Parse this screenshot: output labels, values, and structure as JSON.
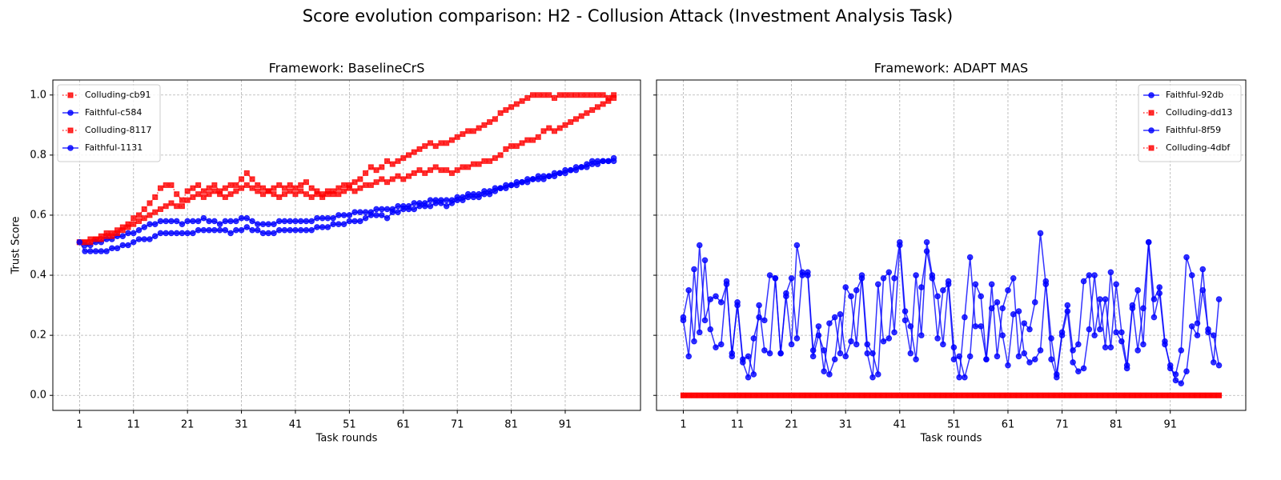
{
  "suptitle": "Score evolution comparison: H2 - Collusion Attack (Investment Analysis Task)",
  "chart_data": [
    {
      "type": "line",
      "title": "Framework: BaselineCrS",
      "xlabel": "Task rounds",
      "ylabel": "Trust Score",
      "x": [
        1,
        2,
        3,
        4,
        5,
        6,
        7,
        8,
        9,
        10,
        11,
        12,
        13,
        14,
        15,
        16,
        17,
        18,
        19,
        20,
        21,
        22,
        23,
        24,
        25,
        26,
        27,
        28,
        29,
        30,
        31,
        32,
        33,
        34,
        35,
        36,
        37,
        38,
        39,
        40,
        41,
        42,
        43,
        44,
        45,
        46,
        47,
        48,
        49,
        50,
        51,
        52,
        53,
        54,
        55,
        56,
        57,
        58,
        59,
        60,
        61,
        62,
        63,
        64,
        65,
        66,
        67,
        68,
        69,
        70,
        71,
        72,
        73,
        74,
        75,
        76,
        77,
        78,
        79,
        80,
        81,
        82,
        83,
        84,
        85,
        86,
        87,
        88,
        89,
        90,
        91,
        92,
        93,
        94,
        95,
        96,
        97,
        98,
        99,
        100
      ],
      "xlim": [
        -3.95,
        104.95
      ],
      "xticks": [
        1,
        11,
        21,
        31,
        41,
        51,
        61,
        71,
        81,
        91
      ],
      "ylim": [
        -0.05,
        1.05
      ],
      "yticks": [
        {
          "value": 0,
          "label": "0.0"
        },
        {
          "value": 0.2,
          "label": "0.2"
        },
        {
          "value": 0.4,
          "label": "0.4"
        },
        {
          "value": 0.6,
          "label": "0.6"
        },
        {
          "value": 0.8,
          "label": "0.8"
        },
        {
          "value": 1,
          "label": "1.0"
        }
      ],
      "grid": true,
      "legend": "upper left",
      "series": [
        {
          "name": "Colluding-cb91",
          "color": "#ff0000",
          "marker": "square",
          "dash": "dotted",
          "values": [
            0.51,
            0.51,
            0.52,
            0.52,
            0.53,
            0.54,
            0.54,
            0.55,
            0.56,
            0.57,
            0.59,
            0.6,
            0.62,
            0.64,
            0.66,
            0.69,
            0.7,
            0.7,
            0.67,
            0.65,
            0.68,
            0.69,
            0.7,
            0.68,
            0.69,
            0.7,
            0.68,
            0.69,
            0.7,
            0.7,
            0.72,
            0.74,
            0.72,
            0.7,
            0.69,
            0.68,
            0.69,
            0.7,
            0.69,
            0.7,
            0.69,
            0.7,
            0.71,
            0.69,
            0.68,
            0.67,
            0.68,
            0.67,
            0.69,
            0.7,
            0.7,
            0.71,
            0.72,
            0.74,
            0.76,
            0.75,
            0.76,
            0.78,
            0.77,
            0.78,
            0.79,
            0.8,
            0.81,
            0.82,
            0.83,
            0.84,
            0.83,
            0.84,
            0.84,
            0.85,
            0.86,
            0.87,
            0.88,
            0.88,
            0.89,
            0.9,
            0.91,
            0.92,
            0.94,
            0.95,
            0.96,
            0.97,
            0.98,
            0.99,
            1.0,
            1.0,
            1.0,
            1.0,
            0.99,
            1.0,
            1.0,
            1.0,
            1.0,
            1.0,
            1.0,
            1.0,
            1.0,
            1.0,
            0.99,
            1.0
          ]
        },
        {
          "name": "Faithful-c584",
          "color": "#0000ff",
          "marker": "circle",
          "dash": "solid",
          "values": [
            0.51,
            0.5,
            0.5,
            0.51,
            0.51,
            0.52,
            0.52,
            0.53,
            0.53,
            0.54,
            0.54,
            0.55,
            0.56,
            0.57,
            0.57,
            0.58,
            0.58,
            0.58,
            0.58,
            0.57,
            0.58,
            0.58,
            0.58,
            0.59,
            0.58,
            0.58,
            0.57,
            0.58,
            0.58,
            0.58,
            0.59,
            0.59,
            0.58,
            0.57,
            0.57,
            0.57,
            0.57,
            0.58,
            0.58,
            0.58,
            0.58,
            0.58,
            0.58,
            0.58,
            0.59,
            0.59,
            0.59,
            0.59,
            0.6,
            0.6,
            0.6,
            0.61,
            0.61,
            0.61,
            0.61,
            0.62,
            0.62,
            0.62,
            0.62,
            0.63,
            0.63,
            0.63,
            0.64,
            0.64,
            0.64,
            0.65,
            0.65,
            0.65,
            0.65,
            0.65,
            0.66,
            0.66,
            0.67,
            0.67,
            0.67,
            0.68,
            0.68,
            0.69,
            0.69,
            0.7,
            0.7,
            0.71,
            0.71,
            0.72,
            0.72,
            0.73,
            0.73,
            0.73,
            0.74,
            0.74,
            0.75,
            0.75,
            0.76,
            0.76,
            0.77,
            0.78,
            0.78,
            0.78,
            0.78,
            0.79
          ]
        },
        {
          "name": "Colluding-8117",
          "color": "#ff0000",
          "marker": "square",
          "dash": "dotted",
          "values": [
            0.51,
            0.51,
            0.51,
            0.52,
            0.52,
            0.53,
            0.53,
            0.54,
            0.55,
            0.56,
            0.57,
            0.58,
            0.59,
            0.6,
            0.61,
            0.62,
            0.63,
            0.64,
            0.63,
            0.63,
            0.65,
            0.66,
            0.67,
            0.66,
            0.67,
            0.68,
            0.67,
            0.66,
            0.67,
            0.68,
            0.69,
            0.7,
            0.69,
            0.68,
            0.67,
            0.68,
            0.67,
            0.66,
            0.67,
            0.68,
            0.67,
            0.68,
            0.67,
            0.66,
            0.67,
            0.66,
            0.67,
            0.68,
            0.67,
            0.68,
            0.69,
            0.68,
            0.69,
            0.7,
            0.7,
            0.71,
            0.72,
            0.71,
            0.72,
            0.73,
            0.72,
            0.73,
            0.74,
            0.75,
            0.74,
            0.75,
            0.76,
            0.75,
            0.75,
            0.74,
            0.75,
            0.76,
            0.76,
            0.77,
            0.77,
            0.78,
            0.78,
            0.79,
            0.8,
            0.82,
            0.83,
            0.83,
            0.84,
            0.85,
            0.85,
            0.86,
            0.88,
            0.89,
            0.88,
            0.89,
            0.9,
            0.91,
            0.92,
            0.93,
            0.94,
            0.95,
            0.96,
            0.97,
            0.98,
            0.99
          ]
        },
        {
          "name": "Faithful-1131",
          "color": "#0000ff",
          "marker": "circle",
          "dash": "solid",
          "values": [
            0.51,
            0.48,
            0.48,
            0.48,
            0.48,
            0.48,
            0.49,
            0.49,
            0.5,
            0.5,
            0.51,
            0.52,
            0.52,
            0.52,
            0.53,
            0.54,
            0.54,
            0.54,
            0.54,
            0.54,
            0.54,
            0.54,
            0.55,
            0.55,
            0.55,
            0.55,
            0.55,
            0.55,
            0.54,
            0.55,
            0.55,
            0.56,
            0.55,
            0.55,
            0.54,
            0.54,
            0.54,
            0.55,
            0.55,
            0.55,
            0.55,
            0.55,
            0.55,
            0.55,
            0.56,
            0.56,
            0.56,
            0.57,
            0.57,
            0.57,
            0.58,
            0.58,
            0.58,
            0.59,
            0.6,
            0.6,
            0.6,
            0.59,
            0.61,
            0.61,
            0.62,
            0.62,
            0.62,
            0.63,
            0.63,
            0.63,
            0.64,
            0.64,
            0.63,
            0.64,
            0.65,
            0.65,
            0.66,
            0.66,
            0.66,
            0.67,
            0.67,
            0.68,
            0.69,
            0.69,
            0.7,
            0.7,
            0.71,
            0.71,
            0.72,
            0.72,
            0.72,
            0.73,
            0.73,
            0.74,
            0.74,
            0.75,
            0.75,
            0.76,
            0.76,
            0.77,
            0.77,
            0.78,
            0.78,
            0.78
          ]
        }
      ]
    },
    {
      "type": "line",
      "title": "Framework: ADAPT MAS",
      "xlabel": "Task rounds",
      "x": [
        1,
        2,
        3,
        4,
        5,
        6,
        7,
        8,
        9,
        10,
        11,
        12,
        13,
        14,
        15,
        16,
        17,
        18,
        19,
        20,
        21,
        22,
        23,
        24,
        25,
        26,
        27,
        28,
        29,
        30,
        31,
        32,
        33,
        34,
        35,
        36,
        37,
        38,
        39,
        40,
        41,
        42,
        43,
        44,
        45,
        46,
        47,
        48,
        49,
        50,
        51,
        52,
        53,
        54,
        55,
        56,
        57,
        58,
        59,
        60,
        61,
        62,
        63,
        64,
        65,
        66,
        67,
        68,
        69,
        70,
        71,
        72,
        73,
        74,
        75,
        76,
        77,
        78,
        79,
        80,
        81,
        82,
        83,
        84,
        85,
        86,
        87,
        88,
        89,
        90,
        91,
        92,
        93,
        94,
        95,
        96,
        97,
        98,
        99,
        100
      ],
      "xlim": [
        -3.95,
        104.95
      ],
      "xticks": [
        1,
        11,
        21,
        31,
        41,
        51,
        61,
        71,
        81,
        91
      ],
      "ylim": [
        -0.05,
        1.05
      ],
      "yticks": [
        0,
        0.2,
        0.4,
        0.6,
        0.8,
        1
      ],
      "grid": true,
      "legend": "upper right",
      "series": [
        {
          "name": "Faithful-92db",
          "color": "#0000ff",
          "marker": "circle",
          "dash": "solid",
          "values": [
            0.26,
            0.35,
            0.18,
            0.5,
            0.25,
            0.32,
            0.33,
            0.31,
            0.37,
            0.14,
            0.3,
            0.11,
            0.06,
            0.19,
            0.26,
            0.25,
            0.4,
            0.39,
            0.14,
            0.33,
            0.17,
            0.5,
            0.4,
            0.41,
            0.15,
            0.23,
            0.08,
            0.24,
            0.26,
            0.14,
            0.36,
            0.33,
            0.17,
            0.4,
            0.17,
            0.14,
            0.07,
            0.39,
            0.41,
            0.21,
            0.5,
            0.25,
            0.14,
            0.4,
            0.2,
            0.51,
            0.4,
            0.33,
            0.17,
            0.38,
            0.16,
            0.06,
            0.26,
            0.46,
            0.23,
            0.23,
            0.12,
            0.37,
            0.13,
            0.29,
            0.35,
            0.39,
            0.13,
            0.24,
            0.22,
            0.31,
            0.54,
            0.37,
            0.19,
            0.07,
            0.21,
            0.3,
            0.15,
            0.17,
            0.38,
            0.4,
            0.2,
            0.32,
            0.16,
            0.41,
            0.21,
            0.18,
            0.09,
            0.29,
            0.35,
            0.17,
            0.51,
            0.32,
            0.36,
            0.18,
            0.09,
            0.07,
            0.15,
            0.46,
            0.4,
            0.24,
            0.42,
            0.21,
            0.2,
            0.1
          ]
        },
        {
          "name": "Colluding-dd13",
          "color": "#ff0000",
          "marker": "square",
          "dash": "dotted",
          "values": [
            0,
            0,
            0,
            0,
            0,
            0,
            0,
            0,
            0,
            0,
            0,
            0,
            0,
            0,
            0,
            0,
            0,
            0,
            0,
            0,
            0,
            0,
            0,
            0,
            0,
            0,
            0,
            0,
            0,
            0,
            0,
            0,
            0,
            0,
            0,
            0,
            0,
            0,
            0,
            0,
            0,
            0,
            0,
            0,
            0,
            0,
            0,
            0,
            0,
            0,
            0,
            0,
            0,
            0,
            0,
            0,
            0,
            0,
            0,
            0,
            0,
            0,
            0,
            0,
            0,
            0,
            0,
            0,
            0,
            0,
            0,
            0,
            0,
            0,
            0,
            0,
            0,
            0,
            0,
            0,
            0,
            0,
            0,
            0,
            0,
            0,
            0,
            0,
            0,
            0,
            0,
            0,
            0,
            0,
            0,
            0,
            0,
            0,
            0,
            0
          ]
        },
        {
          "name": "Faithful-8f59",
          "color": "#0000ff",
          "marker": "circle",
          "dash": "solid",
          "values": [
            0.25,
            0.13,
            0.42,
            0.21,
            0.45,
            0.22,
            0.16,
            0.17,
            0.38,
            0.13,
            0.31,
            0.12,
            0.13,
            0.07,
            0.3,
            0.15,
            0.14,
            0.39,
            0.14,
            0.34,
            0.39,
            0.19,
            0.41,
            0.4,
            0.13,
            0.2,
            0.15,
            0.07,
            0.12,
            0.27,
            0.13,
            0.18,
            0.35,
            0.39,
            0.14,
            0.06,
            0.37,
            0.18,
            0.19,
            0.39,
            0.51,
            0.28,
            0.23,
            0.12,
            0.36,
            0.48,
            0.39,
            0.19,
            0.35,
            0.37,
            0.12,
            0.13,
            0.06,
            0.13,
            0.37,
            0.33,
            0.12,
            0.29,
            0.31,
            0.2,
            0.1,
            0.27,
            0.28,
            0.14,
            0.11,
            0.12,
            0.15,
            0.38,
            0.12,
            0.06,
            0.2,
            0.28,
            0.11,
            0.08,
            0.09,
            0.22,
            0.4,
            0.22,
            0.32,
            0.16,
            0.37,
            0.21,
            0.1,
            0.3,
            0.15,
            0.29,
            0.51,
            0.26,
            0.34,
            0.17,
            0.1,
            0.05,
            0.04,
            0.08,
            0.23,
            0.2,
            0.35,
            0.22,
            0.11,
            0.32
          ]
        },
        {
          "name": "Colluding-4dbf",
          "color": "#ff0000",
          "marker": "square",
          "dash": "dotted",
          "values": [
            0,
            0,
            0,
            0,
            0,
            0,
            0,
            0,
            0,
            0,
            0,
            0,
            0,
            0,
            0,
            0,
            0,
            0,
            0,
            0,
            0,
            0,
            0,
            0,
            0,
            0,
            0,
            0,
            0,
            0,
            0,
            0,
            0,
            0,
            0,
            0,
            0,
            0,
            0,
            0,
            0,
            0,
            0,
            0,
            0,
            0,
            0,
            0,
            0,
            0,
            0,
            0,
            0,
            0,
            0,
            0,
            0,
            0,
            0,
            0,
            0,
            0,
            0,
            0,
            0,
            0,
            0,
            0,
            0,
            0,
            0,
            0,
            0,
            0,
            0,
            0,
            0,
            0,
            0,
            0,
            0,
            0,
            0,
            0,
            0,
            0,
            0,
            0,
            0,
            0,
            0,
            0,
            0,
            0,
            0,
            0,
            0,
            0,
            0,
            0
          ]
        }
      ]
    }
  ]
}
